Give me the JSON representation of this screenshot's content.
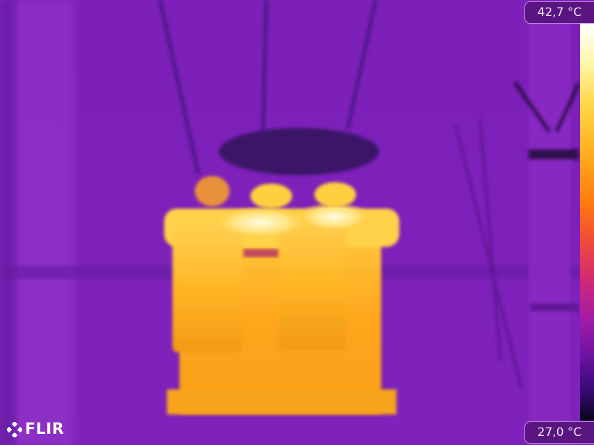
{
  "thermal": {
    "max_temp": "42,7 °C",
    "min_temp": "27,0 °C",
    "palette": "iron",
    "colors": {
      "background": "#7a1fb8",
      "hot": "#fff6c0",
      "warm": "#ffb21e",
      "cool": "#3a1470"
    }
  },
  "brand": {
    "logo": "FLIR",
    "logo_icon": "flir-diamond-icon"
  }
}
